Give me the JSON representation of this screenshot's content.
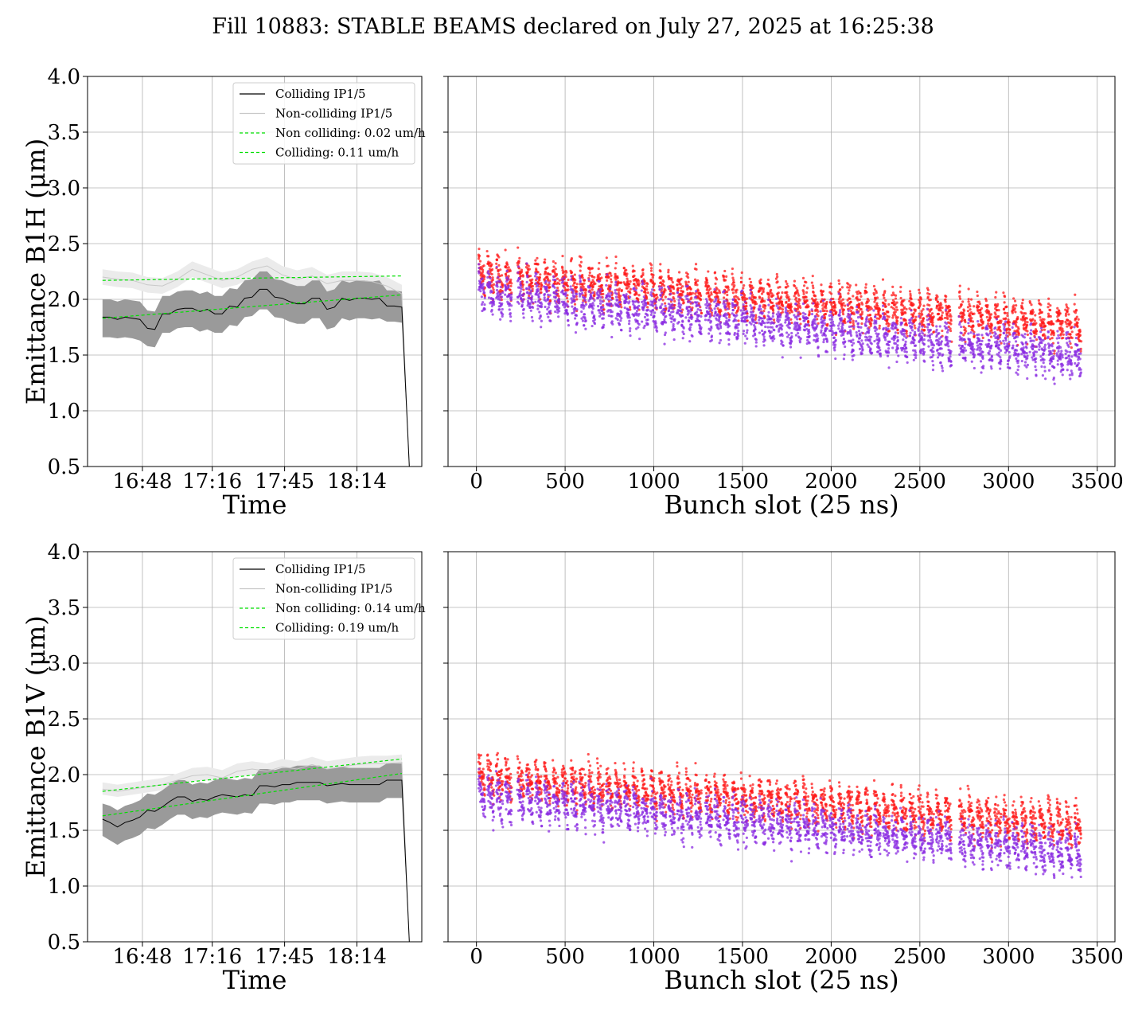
{
  "figure": {
    "title": "Fill 10883: STABLE BEAMS declared on July 27, 2025 at 16:25:38"
  },
  "colors": {
    "colliding_line": "#000000",
    "colliding_band": "#9a9a9a",
    "noncolliding_line": "#c8c8c8",
    "noncolliding_band": "#ebebeb",
    "fit_line": "#00e000",
    "bunch_red": "#ff1a1a",
    "bunch_purple": "#8a2be2",
    "grid": "#b0b0b0"
  },
  "chart_data": [
    {
      "type": "line",
      "id": "b1h-time",
      "xlabel": "Time",
      "ylabel": "Emittance B1H (μm)",
      "x_ticks": [
        "16:48",
        "17:16",
        "17:45",
        "18:14"
      ],
      "x_tick_minutes": [
        48,
        76,
        105,
        134
      ],
      "xlim": [
        26,
        160
      ],
      "ylim": [
        0.5,
        4.0
      ],
      "y_ticks": [
        0.5,
        1.0,
        1.5,
        2.0,
        2.5,
        3.0,
        3.5,
        4.0
      ],
      "grid": true,
      "legend_position": "upper-right",
      "legend": [
        "Colliding IP1/5",
        "Non-colliding IP1/5",
        "Non colliding: 0.02 um/h",
        "Colliding: 0.11 um/h"
      ],
      "series": [
        {
          "name": "Colliding IP1/5",
          "x": [
            32,
            35,
            38,
            41,
            44,
            47,
            50,
            53,
            56,
            59,
            62,
            65,
            68,
            71,
            74,
            77,
            80,
            83,
            86,
            89,
            92,
            95,
            98,
            101,
            104,
            107,
            110,
            113,
            116,
            119,
            122,
            125,
            128,
            131,
            134,
            137,
            140,
            143,
            146,
            149,
            152,
            155
          ],
          "y": [
            1.84,
            1.84,
            1.82,
            1.84,
            1.83,
            1.82,
            1.74,
            1.73,
            1.87,
            1.87,
            1.91,
            1.92,
            1.92,
            1.89,
            1.91,
            1.87,
            1.87,
            1.94,
            1.93,
            2.01,
            2.02,
            2.09,
            2.09,
            2.02,
            2.01,
            1.98,
            1.96,
            1.96,
            2.01,
            2.01,
            1.91,
            1.93,
            2.01,
            1.99,
            2.01,
            2.01,
            2.0,
            2.01,
            1.94,
            1.94,
            1.93,
            0.5
          ],
          "band_low": [
            1.66,
            1.66,
            1.65,
            1.66,
            1.65,
            1.63,
            1.58,
            1.57,
            1.7,
            1.7,
            1.74,
            1.75,
            1.75,
            1.71,
            1.73,
            1.7,
            1.7,
            1.77,
            1.76,
            1.84,
            1.85,
            1.91,
            1.91,
            1.84,
            1.83,
            1.8,
            1.78,
            1.78,
            1.83,
            1.83,
            1.73,
            1.75,
            1.83,
            1.81,
            1.83,
            1.83,
            1.82,
            1.83,
            1.8,
            1.8,
            1.79,
            0.5
          ],
          "band_high": [
            2.0,
            2.0,
            1.98,
            2.0,
            1.99,
            1.98,
            1.9,
            1.89,
            2.03,
            2.03,
            2.07,
            2.08,
            2.08,
            2.05,
            2.07,
            2.03,
            2.03,
            2.1,
            2.09,
            2.17,
            2.18,
            2.25,
            2.25,
            2.18,
            2.17,
            2.14,
            2.12,
            2.12,
            2.17,
            2.17,
            2.07,
            2.09,
            2.17,
            2.15,
            2.17,
            2.17,
            2.16,
            2.17,
            2.08,
            2.08,
            2.07,
            0.5
          ]
        },
        {
          "name": "Non-colliding IP1/5",
          "x": [
            32,
            38,
            44,
            50,
            56,
            62,
            68,
            74,
            80,
            86,
            92,
            98,
            104,
            110,
            116,
            122,
            128,
            134,
            140,
            146,
            152,
            155
          ],
          "y": [
            2.2,
            2.18,
            2.17,
            2.13,
            2.12,
            2.18,
            2.27,
            2.22,
            2.17,
            2.2,
            2.27,
            2.3,
            2.22,
            2.18,
            2.21,
            2.14,
            2.17,
            2.17,
            2.16,
            2.12,
            2.05,
            0.5
          ],
          "band_low": [
            2.13,
            2.11,
            2.1,
            2.06,
            2.05,
            2.11,
            2.2,
            2.15,
            2.1,
            2.13,
            2.2,
            2.22,
            2.14,
            2.1,
            2.13,
            2.06,
            2.09,
            2.09,
            2.08,
            2.04,
            1.97,
            0.5
          ],
          "band_high": [
            2.27,
            2.25,
            2.24,
            2.2,
            2.19,
            2.25,
            2.34,
            2.29,
            2.24,
            2.27,
            2.34,
            2.38,
            2.3,
            2.26,
            2.29,
            2.22,
            2.25,
            2.25,
            2.24,
            2.2,
            2.13,
            0.5
          ]
        },
        {
          "name": "Non colliding: 0.02 um/h",
          "style": "dashed",
          "x": [
            32,
            152
          ],
          "y": [
            2.17,
            2.21
          ]
        },
        {
          "name": "Colliding: 0.11 um/h",
          "style": "dashed",
          "x": [
            32,
            152
          ],
          "y": [
            1.83,
            2.04
          ]
        }
      ]
    },
    {
      "type": "scatter",
      "id": "b1h-bunch",
      "xlabel": "Bunch slot (25 ns)",
      "ylabel": "",
      "xlim": [
        -160,
        3600
      ],
      "ylim": [
        0.5,
        4.0
      ],
      "x_ticks": [
        0,
        500,
        1000,
        1500,
        2000,
        2500,
        3000,
        3500
      ],
      "y_ticks": [
        0.5,
        1.0,
        1.5,
        2.0,
        2.5,
        3.0,
        3.5,
        4.0
      ],
      "grid": true,
      "series": [
        {
          "color": "red",
          "train_starts": [
            10,
            60,
            110,
            160,
            230,
            280,
            330,
            380,
            430,
            480,
            530,
            580,
            630,
            680,
            730,
            780,
            830,
            880,
            930,
            980,
            1030,
            1080,
            1130,
            1180,
            1230,
            1290,
            1340,
            1390,
            1440,
            1490,
            1540,
            1590,
            1640,
            1690,
            1740,
            1790,
            1840,
            1890,
            1940,
            1990,
            2040,
            2090,
            2140,
            2190,
            2240,
            2290,
            2340,
            2390,
            2440,
            2490,
            2540,
            2590,
            2640,
            2720,
            2770,
            2820,
            2870,
            2920,
            2970,
            3020,
            3070,
            3120,
            3170,
            3220,
            3270,
            3320,
            3370
          ],
          "start_value": 2.22,
          "end_value": 1.76,
          "spread": 0.14
        },
        {
          "color": "purple",
          "train_starts": [
            10,
            60,
            110,
            160,
            230,
            280,
            330,
            380,
            430,
            480,
            530,
            580,
            630,
            680,
            730,
            780,
            830,
            880,
            930,
            980,
            1030,
            1080,
            1130,
            1180,
            1230,
            1290,
            1340,
            1390,
            1440,
            1490,
            1540,
            1590,
            1640,
            1690,
            1740,
            1790,
            1840,
            1890,
            1940,
            1990,
            2040,
            2090,
            2140,
            2190,
            2240,
            2290,
            2340,
            2390,
            2440,
            2490,
            2540,
            2590,
            2640,
            2720,
            2770,
            2820,
            2870,
            2920,
            2970,
            3020,
            3070,
            3120,
            3170,
            3220,
            3270,
            3320,
            3370
          ],
          "start_value": 2.06,
          "end_value": 1.48,
          "spread": 0.16
        }
      ]
    },
    {
      "type": "line",
      "id": "b1v-time",
      "xlabel": "Time",
      "ylabel": "Emittance B1V (μm)",
      "x_ticks": [
        "16:48",
        "17:16",
        "17:45",
        "18:14"
      ],
      "x_tick_minutes": [
        48,
        76,
        105,
        134
      ],
      "xlim": [
        26,
        160
      ],
      "ylim": [
        0.5,
        4.0
      ],
      "y_ticks": [
        0.5,
        1.0,
        1.5,
        2.0,
        2.5,
        3.0,
        3.5,
        4.0
      ],
      "grid": true,
      "legend_position": "upper-right",
      "legend": [
        "Colliding IP1/5",
        "Non-colliding IP1/5",
        "Non colliding: 0.14 um/h",
        "Colliding: 0.19 um/h"
      ],
      "series": [
        {
          "name": "Colliding IP1/5",
          "x": [
            32,
            35,
            38,
            41,
            44,
            47,
            50,
            53,
            56,
            59,
            62,
            65,
            68,
            71,
            74,
            77,
            80,
            83,
            86,
            89,
            92,
            95,
            98,
            101,
            104,
            107,
            110,
            113,
            116,
            119,
            122,
            125,
            128,
            131,
            134,
            137,
            140,
            143,
            146,
            149,
            152,
            155
          ],
          "y": [
            1.6,
            1.57,
            1.53,
            1.57,
            1.59,
            1.62,
            1.68,
            1.67,
            1.71,
            1.76,
            1.8,
            1.8,
            1.76,
            1.78,
            1.77,
            1.8,
            1.82,
            1.81,
            1.8,
            1.82,
            1.81,
            1.9,
            1.9,
            1.89,
            1.91,
            1.91,
            1.93,
            1.93,
            1.93,
            1.93,
            1.9,
            1.91,
            1.92,
            1.91,
            1.91,
            1.91,
            1.91,
            1.91,
            1.95,
            1.95,
            1.95,
            0.5
          ],
          "band_low": [
            1.45,
            1.41,
            1.37,
            1.41,
            1.43,
            1.46,
            1.52,
            1.51,
            1.55,
            1.6,
            1.64,
            1.64,
            1.6,
            1.62,
            1.61,
            1.64,
            1.66,
            1.65,
            1.64,
            1.66,
            1.65,
            1.74,
            1.74,
            1.73,
            1.75,
            1.75,
            1.77,
            1.77,
            1.77,
            1.77,
            1.74,
            1.75,
            1.76,
            1.75,
            1.75,
            1.75,
            1.75,
            1.75,
            1.79,
            1.79,
            1.79,
            0.5
          ],
          "band_high": [
            1.74,
            1.72,
            1.68,
            1.72,
            1.74,
            1.77,
            1.83,
            1.82,
            1.86,
            1.91,
            1.95,
            1.95,
            1.91,
            1.93,
            1.92,
            1.95,
            1.97,
            1.96,
            1.95,
            1.97,
            1.96,
            2.05,
            2.05,
            2.04,
            2.06,
            2.06,
            2.08,
            2.08,
            2.08,
            2.08,
            2.05,
            2.06,
            2.07,
            2.06,
            2.06,
            2.06,
            2.06,
            2.06,
            2.1,
            2.1,
            2.1,
            0.5
          ]
        },
        {
          "name": "Non-colliding IP1/5",
          "x": [
            32,
            38,
            44,
            50,
            56,
            62,
            68,
            74,
            80,
            86,
            92,
            98,
            104,
            110,
            116,
            122,
            128,
            134,
            140,
            146,
            152,
            155
          ],
          "y": [
            1.87,
            1.85,
            1.87,
            1.89,
            1.91,
            1.95,
            1.99,
            2.0,
            1.97,
            2.03,
            2.05,
            2.03,
            2.07,
            2.05,
            2.09,
            2.05,
            2.07,
            2.09,
            2.1,
            2.1,
            2.11,
            0.5
          ],
          "band_low": [
            1.82,
            1.8,
            1.82,
            1.84,
            1.86,
            1.9,
            1.94,
            1.95,
            1.92,
            1.98,
            2.0,
            1.98,
            2.02,
            2.0,
            2.04,
            2.0,
            2.02,
            2.04,
            2.05,
            2.05,
            2.06,
            0.5
          ],
          "band_high": [
            1.93,
            1.91,
            1.93,
            1.95,
            1.97,
            2.01,
            2.06,
            2.07,
            2.04,
            2.1,
            2.12,
            2.1,
            2.14,
            2.12,
            2.16,
            2.12,
            2.14,
            2.16,
            2.17,
            2.17,
            2.18,
            0.5
          ]
        },
        {
          "name": "Non colliding: 0.14 um/h",
          "style": "dashed",
          "x": [
            32,
            152
          ],
          "y": [
            1.85,
            2.14
          ]
        },
        {
          "name": "Colliding: 0.19 um/h",
          "style": "dashed",
          "x": [
            32,
            152
          ],
          "y": [
            1.63,
            2.01
          ]
        }
      ]
    },
    {
      "type": "scatter",
      "id": "b1v-bunch",
      "xlabel": "Bunch slot (25 ns)",
      "ylabel": "",
      "xlim": [
        -160,
        3600
      ],
      "ylim": [
        0.5,
        4.0
      ],
      "x_ticks": [
        0,
        500,
        1000,
        1500,
        2000,
        2500,
        3000,
        3500
      ],
      "y_ticks": [
        0.5,
        1.0,
        1.5,
        2.0,
        2.5,
        3.0,
        3.5,
        4.0
      ],
      "grid": true,
      "series": [
        {
          "color": "red",
          "train_starts": [
            10,
            60,
            110,
            160,
            230,
            280,
            330,
            380,
            430,
            480,
            530,
            580,
            630,
            680,
            730,
            780,
            830,
            880,
            930,
            980,
            1030,
            1080,
            1130,
            1180,
            1230,
            1290,
            1340,
            1390,
            1440,
            1490,
            1540,
            1590,
            1640,
            1690,
            1740,
            1790,
            1840,
            1890,
            1940,
            1990,
            2040,
            2090,
            2140,
            2190,
            2240,
            2290,
            2340,
            2390,
            2440,
            2490,
            2540,
            2590,
            2640,
            2720,
            2770,
            2820,
            2870,
            2920,
            2970,
            3020,
            3070,
            3120,
            3170,
            3220,
            3270,
            3320,
            3370
          ],
          "start_value": 1.98,
          "end_value": 1.54,
          "spread": 0.14
        },
        {
          "color": "purple",
          "train_starts": [
            10,
            60,
            110,
            160,
            230,
            280,
            330,
            380,
            430,
            480,
            530,
            580,
            630,
            680,
            730,
            780,
            830,
            880,
            930,
            980,
            1030,
            1080,
            1130,
            1180,
            1230,
            1290,
            1340,
            1390,
            1440,
            1490,
            1540,
            1590,
            1640,
            1690,
            1740,
            1790,
            1840,
            1890,
            1940,
            1990,
            2040,
            2090,
            2140,
            2190,
            2240,
            2290,
            2340,
            2390,
            2440,
            2490,
            2540,
            2590,
            2640,
            2720,
            2770,
            2820,
            2870,
            2920,
            2970,
            3020,
            3070,
            3120,
            3170,
            3220,
            3270,
            3320,
            3370
          ],
          "start_value": 1.8,
          "end_value": 1.3,
          "spread": 0.16
        }
      ]
    }
  ]
}
